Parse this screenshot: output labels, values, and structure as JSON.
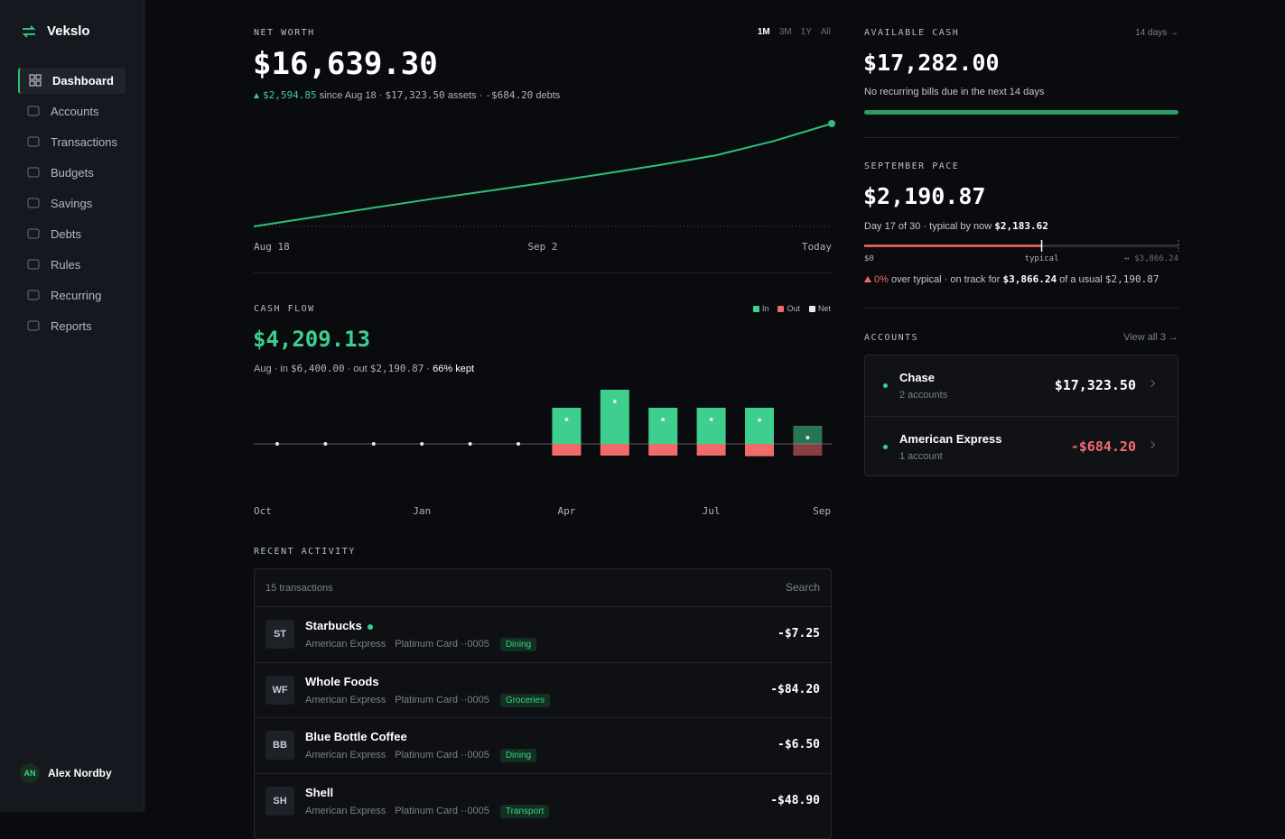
{
  "sidebar": {
    "brand": "Vekslo",
    "nav": [
      "Dashboard",
      "Accounts",
      "Transactions",
      "Budgets",
      "Savings",
      "Debts",
      "Rules",
      "Recurring",
      "Reports"
    ],
    "active": 0,
    "user": {
      "initials": "AN",
      "name": "Alex Nordby"
    }
  },
  "net_worth": {
    "label": "NET WORTH",
    "ranges": [
      "1M",
      "3M",
      "1Y",
      "All"
    ],
    "active_range": 0,
    "value": "$16,639.30",
    "change": "$2,594.85",
    "since": "since Aug 18 ·",
    "assets": "$17,323.50",
    "assets_label": "assets ·",
    "debts": "-$684.20",
    "debts_label": "debts"
  },
  "cash_flow": {
    "label": "CASH FLOW",
    "value": "$4,209.13",
    "period": "Aug · in",
    "in": "$6,400.00",
    "out_label": "· out",
    "out": "$2,190.87",
    "sep": "·",
    "kept": "66% kept"
  },
  "chart_data": [
    {
      "type": "line",
      "color": "#2fbf7a",
      "categories": [
        "Aug 18",
        null,
        null,
        null,
        null,
        "Sep 2",
        null,
        null,
        null,
        null,
        "Today"
      ],
      "values": [
        14044.45,
        14270,
        14500,
        14720,
        14930,
        15140,
        15360,
        15590,
        15840,
        16200,
        16639.3
      ]
    },
    {
      "type": "bar",
      "categories": [
        "Oct",
        null,
        null,
        "Jan",
        null,
        null,
        "Apr",
        null,
        null,
        "Jul",
        null,
        "Sep"
      ],
      "series": [
        {
          "name": "In",
          "color": "#3ecf8e",
          "values": [
            0,
            0,
            0,
            0,
            0,
            0,
            6400,
            9600,
            6400,
            6400,
            6400,
            3200
          ]
        },
        {
          "name": "Out",
          "color": "#f26b6b",
          "values": [
            0,
            0,
            0,
            0,
            0,
            0,
            2080,
            2080,
            2080,
            2080,
            2190.87,
            2100
          ]
        },
        {
          "name": "Net",
          "color": "#e8e8e8",
          "values": [
            0,
            0,
            0,
            0,
            0,
            0,
            4320,
            7520,
            4320,
            4320,
            4209.13,
            1100
          ]
        }
      ]
    }
  ],
  "available_cash": {
    "label": "AVAILABLE CASH",
    "link": "14 days →",
    "value": "$17,282.00",
    "note": "No recurring bills due in the next 14 days"
  },
  "pace": {
    "label": "SEPTEMBER PACE",
    "value": "$2,190.87",
    "day": "Day 17 of 30 · typical by now",
    "typical_now": "$2,183.62",
    "bar": {
      "min": {
        "value": 0,
        "label": "$0"
      },
      "max": {
        "value": 3866.24,
        "label": "↔ $3,866.24"
      },
      "spent": 2190.87,
      "typical": {
        "value": 2183.62,
        "label": "typical"
      }
    },
    "note": {
      "pct": "0%",
      "over": "over typical · on track for",
      "track": "$3,866.24",
      "usual_label": "of a usual",
      "usual": "$2,190.87"
    }
  },
  "accounts": {
    "label": "ACCOUNTS",
    "link": "View all 3 →",
    "rows": [
      {
        "name": "Chase",
        "sub": "2 accounts",
        "amount": "$17,323.50"
      },
      {
        "name": "American Express",
        "sub": "1 account",
        "amount": "-$684.20"
      }
    ]
  },
  "activity": {
    "label": "RECENT ACTIVITY",
    "count": "15 transactions",
    "search": "Search",
    "rows": [
      {
        "initials": "ST",
        "name": "Starbucks",
        "new": true,
        "issuer": "American Express",
        "card": "Platinum Card ··0005",
        "tag": "Dining",
        "amount": "-$7.25"
      },
      {
        "initials": "WF",
        "name": "Whole Foods",
        "new": false,
        "issuer": "American Express",
        "card": "Platinum Card ··0005",
        "tag": "Groceries",
        "amount": "-$84.20"
      },
      {
        "initials": "BB",
        "name": "Blue Bottle Coffee",
        "new": false,
        "issuer": "American Express",
        "card": "Platinum Card ··0005",
        "tag": "Dining",
        "amount": "-$6.50"
      },
      {
        "initials": "SH",
        "name": "Shell",
        "new": false,
        "issuer": "American Express",
        "card": "Platinum Card ··0005",
        "tag": "Transport",
        "amount": "-$48.90"
      }
    ]
  }
}
